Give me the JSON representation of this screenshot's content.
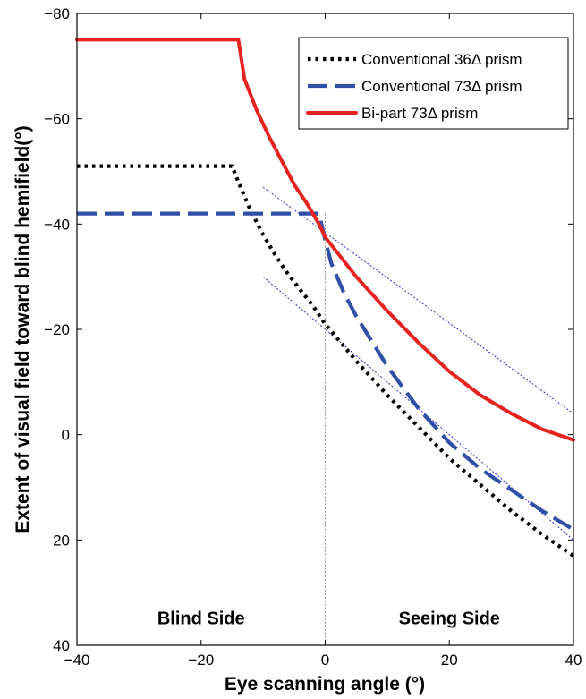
{
  "chart_data": {
    "type": "line",
    "xlabel": "Eye scanning angle (°)",
    "ylabel": "Extent of visual field toward blind hemifield(°)",
    "xlim": [
      -40,
      40
    ],
    "ylim": [
      40,
      -80
    ],
    "y_axis_inverted": true,
    "x_ticks": [
      -40,
      -20,
      0,
      20,
      40
    ],
    "y_ticks": [
      -80,
      -60,
      -40,
      -20,
      0,
      20,
      40
    ],
    "x_tick_labels": [
      "−40",
      "−20",
      "0",
      "20",
      "40"
    ],
    "y_tick_labels": [
      "−80",
      "−60",
      "−40",
      "−20",
      "0",
      "20",
      "40"
    ],
    "grid": false,
    "legend_position": "top-right",
    "region_labels": [
      {
        "text": "Blind Side",
        "x": -20,
        "y": 36
      },
      {
        "text": "Seeing Side",
        "x": 20,
        "y": 36
      }
    ],
    "series": [
      {
        "name": "Conventional 36Δ prism",
        "style": "dotted",
        "color": "#000000",
        "x": [
          -40,
          -15,
          -14,
          -12,
          -10,
          -8,
          -6,
          -4,
          -2,
          0,
          5,
          10,
          15,
          20,
          25,
          30,
          35,
          40
        ],
        "y": [
          -51,
          -51,
          -48,
          -42.5,
          -38,
          -34,
          -30.5,
          -27.5,
          -24.5,
          -21,
          -14,
          -7.5,
          -1.5,
          4.5,
          9.5,
          14.5,
          19,
          23
        ]
      },
      {
        "name": "Conventional 73Δ prism",
        "style": "dashed",
        "color": "#3050a8",
        "x": [
          -40,
          -1,
          0,
          1,
          3,
          5,
          10,
          15,
          20,
          25,
          30,
          35,
          40
        ],
        "y": [
          -42,
          -42,
          -37,
          -32.5,
          -27,
          -22.5,
          -13,
          -5,
          1.5,
          6.5,
          10.5,
          14.5,
          18
        ]
      },
      {
        "name": "Bi-part 73Δ prism",
        "style": "solid",
        "color": "#e52421",
        "x": [
          -40,
          -14,
          -13,
          -11,
          -9,
          -7,
          -5,
          -3,
          -1,
          0,
          5,
          10,
          15,
          20,
          25,
          30,
          35,
          40
        ],
        "y": [
          -75,
          -75,
          -67.5,
          -61.5,
          -56.5,
          -52,
          -47.5,
          -44,
          -40,
          -37.5,
          -30,
          -23.5,
          -17.5,
          -12,
          -7.5,
          -4,
          -1,
          1
        ]
      },
      {
        "style": "thin-dotted",
        "color": "#2b2bd0",
        "x": [
          -10,
          40
        ],
        "y": [
          -47,
          -4
        ]
      },
      {
        "style": "thin-dotted",
        "color": "#2b2bd0",
        "x": [
          -10,
          40
        ],
        "y": [
          -30,
          20
        ]
      },
      {
        "style": "thin-dotted",
        "color": "#888888",
        "x": [
          0,
          0
        ],
        "y": [
          -42,
          40
        ]
      }
    ]
  }
}
